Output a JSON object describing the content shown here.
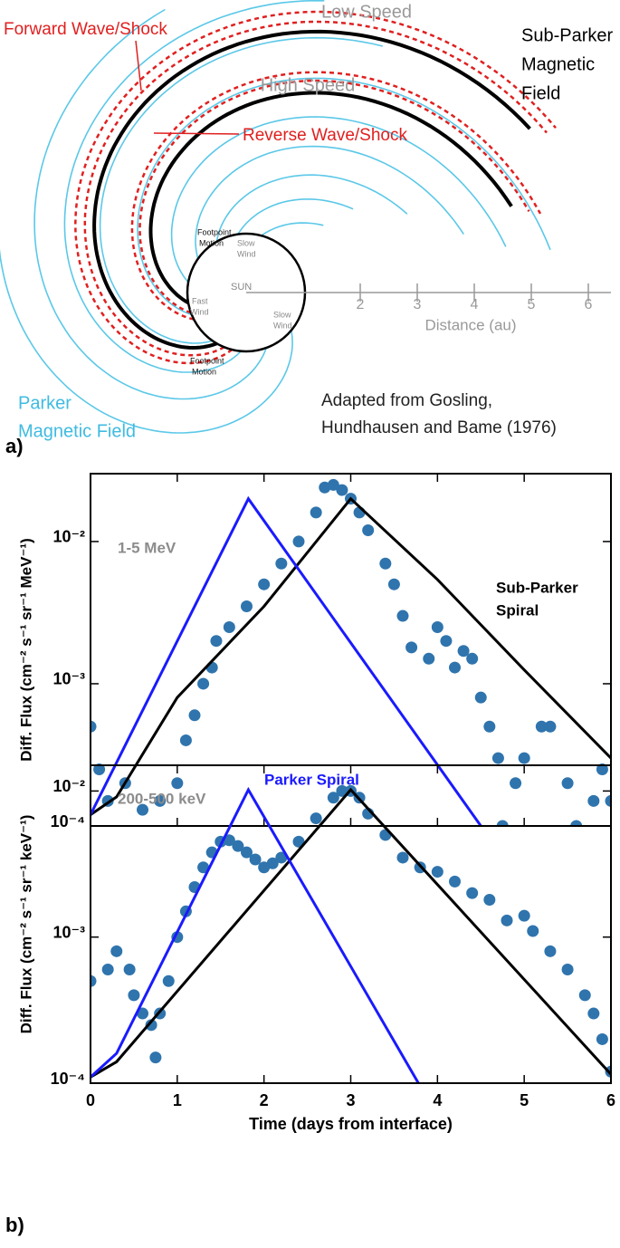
{
  "diagram": {
    "low_speed": "Low Speed",
    "high_speed": "High Speed",
    "forward_shock": "Forward Wave/Shock",
    "reverse_shock": "Reverse Wave/Shock",
    "sub_parker_label": [
      "Sub-Parker",
      "Magnetic",
      "Field"
    ],
    "parker_label": [
      "Parker",
      "Magnetic Field"
    ],
    "credit": [
      "Adapted from Gosling,",
      "Hundhausen and Bame (1976)"
    ],
    "sun": "SUN",
    "sun_labels": [
      [
        "Footpoint",
        "Motion"
      ],
      [
        "Slow",
        "Wind"
      ],
      [
        "Fast",
        "Wind"
      ],
      [
        "Slow",
        "Wind"
      ],
      [
        "Footpoint",
        "Motion"
      ]
    ],
    "distance_label": "Distance (au)",
    "distance_ticks": [
      2,
      3,
      4,
      5,
      6
    ],
    "panel_label": "a)"
  },
  "panel_b_label": "b)",
  "chart_data": [
    {
      "type": "log-line-scatter",
      "ylabel": "Diff. Flux (cm⁻² s⁻¹ sr⁻¹ MeV⁻¹)",
      "xlim": [
        0,
        6
      ],
      "xticks": [
        0,
        1,
        2,
        3,
        4,
        5,
        6
      ],
      "xtick_labels": false,
      "ylim": [
        0.0001,
        0.03
      ],
      "log_y": true,
      "yticks": [
        {
          "value": 0.0001,
          "label": "10⁻⁴"
        },
        {
          "value": 0.001,
          "label": "10⁻³"
        },
        {
          "value": 0.01,
          "label": "10⁻²"
        }
      ],
      "annotations": [
        {
          "text": [
            "1-5 MeV"
          ],
          "color": "#8c8c8c"
        },
        {
          "text": [
            "Sub-Parker",
            "Spiral"
          ],
          "color": "#000000"
        },
        {
          "text": [
            "Parker Spiral"
          ],
          "color": "#1a1aff"
        }
      ],
      "series": [
        {
          "style": "scatter",
          "color": "#2f74ad",
          "x": [
            0,
            0.1,
            0.2,
            0.4,
            0.6,
            0.8,
            1.0,
            1.1,
            1.2,
            1.3,
            1.4,
            1.45,
            1.6,
            1.8,
            2.0,
            2.2,
            2.4,
            2.6,
            2.7,
            2.8,
            2.9,
            3.0,
            3.1,
            3.2,
            3.4,
            3.5,
            3.6,
            3.7,
            3.9,
            4.0,
            4.1,
            4.2,
            4.3,
            4.4,
            4.5,
            4.6,
            4.7,
            4.75,
            4.9,
            5.0,
            5.2,
            5.3,
            5.5,
            5.6,
            5.8,
            5.9,
            6.0
          ],
          "values": [
            0.0005,
            0.00025,
            0.00015,
            0.0002,
            0.00013,
            0.00015,
            0.0002,
            0.0004,
            0.0006,
            0.001,
            0.0013,
            0.002,
            0.0025,
            0.0035,
            0.005,
            0.007,
            0.01,
            0.016,
            0.024,
            0.025,
            0.023,
            0.02,
            0.016,
            0.012,
            0.007,
            0.005,
            0.003,
            0.0018,
            0.0015,
            0.0025,
            0.002,
            0.0013,
            0.0017,
            0.0015,
            0.0008,
            0.0005,
            0.0003,
            0.0001,
            0.0002,
            0.0003,
            0.0005,
            0.0005,
            0.0002,
            0.0001,
            0.00015,
            0.00025,
            0.00015
          ]
        },
        {
          "style": "line",
          "color": "#000000",
          "x": [
            0,
            0.3,
            1,
            2,
            3,
            4,
            5,
            6
          ],
          "values": [
            0.00012,
            0.00016,
            0.0008,
            0.0035,
            0.02,
            0.0054,
            0.00125,
            0.0003
          ]
        },
        {
          "style": "line",
          "color": "#1a1aff",
          "x": [
            0,
            1.82,
            4.5
          ],
          "values": [
            0.00012,
            0.02,
            0.0001
          ]
        }
      ]
    },
    {
      "type": "log-line-scatter",
      "ylabel": "Diff. Flux (cm⁻² s⁻¹ sr⁻¹ keV⁻¹)",
      "xlabel": "Time (days from interface)",
      "xlim": [
        0,
        6
      ],
      "xticks": [
        0,
        1,
        2,
        3,
        4,
        5,
        6
      ],
      "xtick_labels": true,
      "ylim": [
        0.0001,
        0.015
      ],
      "log_y": true,
      "yticks": [
        {
          "value": 0.0001,
          "label": "10⁻⁴"
        },
        {
          "value": 0.001,
          "label": "10⁻³"
        },
        {
          "value": 0.01,
          "label": "10⁻²"
        }
      ],
      "annotations": [
        {
          "text": [
            "200-500 keV"
          ],
          "color": "#8c8c8c"
        }
      ],
      "series": [
        {
          "style": "scatter",
          "color": "#2f74ad",
          "x": [
            0,
            0.2,
            0.3,
            0.45,
            0.5,
            0.6,
            0.7,
            0.75,
            0.8,
            0.9,
            1.0,
            1.1,
            1.2,
            1.3,
            1.4,
            1.5,
            1.6,
            1.7,
            1.8,
            1.9,
            2.0,
            2.1,
            2.2,
            2.4,
            2.6,
            2.8,
            2.9,
            3.0,
            3.1,
            3.2,
            3.4,
            3.6,
            3.8,
            4.0,
            4.2,
            4.4,
            4.6,
            4.8,
            5.0,
            5.1,
            5.3,
            5.5,
            5.7,
            5.8,
            5.9,
            6.0
          ],
          "values": [
            0.0005,
            0.0006,
            0.0008,
            0.0006,
            0.0004,
            0.0003,
            0.00025,
            0.00015,
            0.0003,
            0.0005,
            0.001,
            0.0015,
            0.0022,
            0.003,
            0.0038,
            0.0045,
            0.0046,
            0.0042,
            0.0038,
            0.0034,
            0.003,
            0.0032,
            0.0035,
            0.0045,
            0.0065,
            0.009,
            0.01,
            0.01,
            0.009,
            0.007,
            0.005,
            0.0035,
            0.003,
            0.0028,
            0.0024,
            0.002,
            0.0018,
            0.0013,
            0.0014,
            0.0011,
            0.0008,
            0.0006,
            0.0004,
            0.0003,
            0.0002,
            0.00012
          ]
        },
        {
          "style": "line",
          "color": "#000000",
          "x": [
            0,
            0.3,
            3.0,
            6.0
          ],
          "values": [
            0.00011,
            0.00014,
            0.0102,
            0.000115
          ]
        },
        {
          "style": "line",
          "color": "#1a1aff",
          "x": [
            0,
            0.3,
            1.82,
            3.78
          ],
          "values": [
            0.00011,
            0.00016,
            0.0102,
            0.0001
          ]
        }
      ]
    }
  ]
}
